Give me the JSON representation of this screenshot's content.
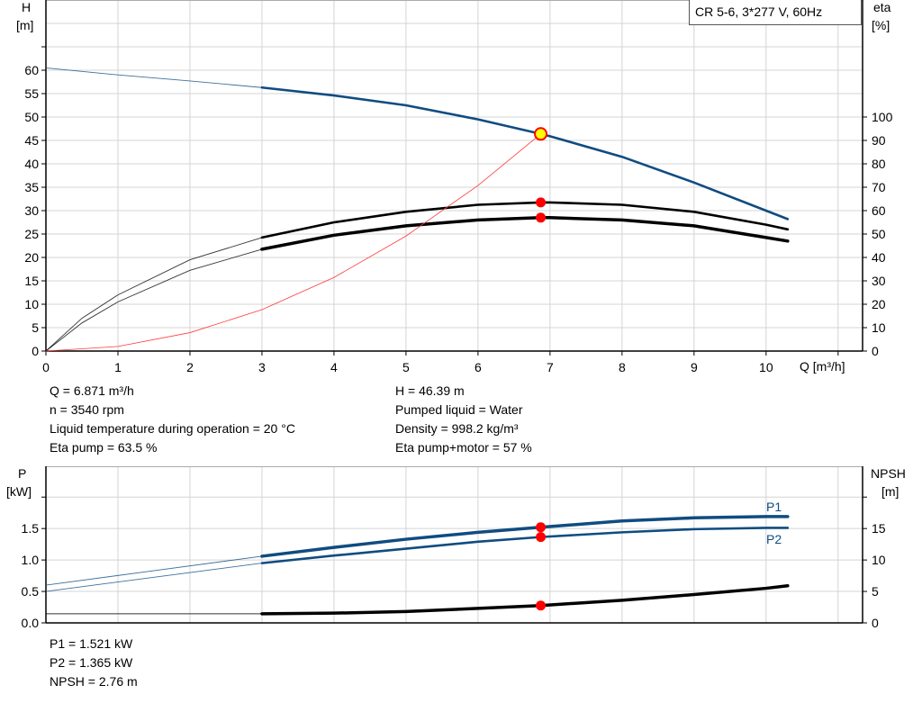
{
  "chart_data": [
    {
      "type": "line",
      "title": "CR 5-6, 3*277 V, 60Hz",
      "xlabel": "Q [m³/h]",
      "ylabel_left": [
        "H",
        "[m]"
      ],
      "ylabel_right": [
        "eta",
        "[%]"
      ],
      "xlim": [
        0,
        11.34
      ],
      "ylim_left": [
        0,
        75
      ],
      "ylim_right": [
        0,
        150
      ],
      "x_ticks": [
        "0",
        "1",
        "2",
        "3",
        "4",
        "5",
        "6",
        "7",
        "8",
        "9",
        "10"
      ],
      "y_left_ticks": [
        "0",
        "5",
        "10",
        "15",
        "20",
        "25",
        "30",
        "35",
        "40",
        "45",
        "50",
        "55",
        "60"
      ],
      "y_right_ticks": [
        "0",
        "10",
        "20",
        "30",
        "40",
        "50",
        "60",
        "70",
        "80",
        "90",
        "100"
      ],
      "grid": true,
      "series": [
        {
          "axis": "left",
          "color": "#0f4c81",
          "x": [
            0,
            1,
            2,
            3,
            4,
            5,
            6,
            6.871,
            7,
            8,
            9,
            10,
            10.3
          ],
          "y": [
            60.5,
            59,
            57.7,
            56.3,
            54.6,
            52.5,
            49.5,
            46.39,
            45.9,
            41.5,
            36,
            30,
            28.2
          ],
          "thick_from": 3
        },
        {
          "axis": "right",
          "color": "#000000",
          "x": [
            0,
            0.5,
            1,
            2,
            3,
            4,
            5,
            6,
            6.871,
            7,
            8,
            9,
            10,
            10.3
          ],
          "y": [
            0,
            14,
            24,
            39,
            48.5,
            55,
            59.5,
            62.5,
            63.5,
            63.5,
            62.5,
            59.5,
            54,
            52
          ],
          "thick_from": 3
        },
        {
          "axis": "right",
          "color": "#000000",
          "x": [
            0,
            0.5,
            1,
            2,
            3,
            4,
            5,
            6,
            6.871,
            7,
            8,
            9,
            10,
            10.3
          ],
          "y": [
            0,
            12,
            21,
            34.5,
            43.5,
            49.5,
            53.5,
            56,
            57,
            57,
            56,
            53.5,
            48.5,
            47
          ],
          "thick_from": 3,
          "heavy": true
        },
        {
          "axis": "left",
          "color": "#ff3b3b",
          "x": [
            0,
            1,
            2,
            3,
            4,
            5,
            6,
            6.871
          ],
          "y": [
            0,
            0.98,
            3.93,
            8.84,
            15.72,
            24.57,
            35.38,
            46.39
          ],
          "thin": true
        }
      ],
      "markers": [
        {
          "axis": "left",
          "x": 6.871,
          "y": 46.39,
          "fill": "#ffff00",
          "stroke": "#ff0000"
        },
        {
          "axis": "right",
          "x": 6.871,
          "y": 63.5,
          "fill": "#ff0000"
        },
        {
          "axis": "right",
          "x": 6.871,
          "y": 57,
          "fill": "#ff0000"
        }
      ]
    },
    {
      "type": "line",
      "ylabel_left": [
        "P",
        "[kW]"
      ],
      "ylabel_right": [
        "NPSH",
        "[m]"
      ],
      "xlim": [
        0,
        11.34
      ],
      "ylim_left": [
        0,
        2.49
      ],
      "ylim_right": [
        0,
        24.9
      ],
      "y_left_ticks": [
        "0.0",
        "0.5",
        "1.0",
        "1.5"
      ],
      "y_right_ticks": [
        "0",
        "5",
        "10",
        "15"
      ],
      "grid": true,
      "series": [
        {
          "name": "P1",
          "axis": "left",
          "color": "#0f4c81",
          "x": [
            0,
            3,
            4,
            5,
            6,
            6.871,
            8,
            9,
            10,
            10.3
          ],
          "y": [
            0.6,
            1.06,
            1.2,
            1.33,
            1.44,
            1.521,
            1.62,
            1.67,
            1.69,
            1.69
          ],
          "thick_from": 3,
          "heavy": true
        },
        {
          "name": "P2",
          "axis": "left",
          "color": "#0f4c81",
          "x": [
            0,
            3,
            4,
            5,
            6,
            6.871,
            8,
            9,
            10,
            10.3
          ],
          "y": [
            0.5,
            0.95,
            1.07,
            1.18,
            1.29,
            1.365,
            1.44,
            1.49,
            1.51,
            1.51
          ],
          "thick_from": 3
        },
        {
          "axis": "right",
          "color": "#000000",
          "x": [
            0,
            3,
            4,
            5,
            6,
            6.871,
            8,
            9,
            10,
            10.3
          ],
          "y": [
            1.45,
            1.45,
            1.55,
            1.8,
            2.3,
            2.76,
            3.6,
            4.5,
            5.5,
            5.9
          ],
          "thick_from": 3,
          "heavy": true
        }
      ],
      "markers": [
        {
          "axis": "left",
          "x": 6.871,
          "y": 1.521,
          "fill": "#ff0000"
        },
        {
          "axis": "left",
          "x": 6.871,
          "y": 1.365,
          "fill": "#ff0000"
        },
        {
          "axis": "right",
          "x": 6.871,
          "y": 2.76,
          "fill": "#ff0000"
        }
      ]
    }
  ],
  "info_left": [
    "Q = 6.871 m³/h",
    "n = 3540 rpm",
    "Liquid temperature during operation = 20 °C",
    "Eta pump = 63.5 %"
  ],
  "info_right": [
    "H = 46.39 m",
    "Pumped liquid = Water",
    "Density = 998.2 kg/m³",
    "Eta pump+motor = 57 %"
  ],
  "info_bottom": [
    "P1 = 1.521 kW",
    "P2 = 1.365 kW",
    "NPSH = 2.76 m"
  ]
}
